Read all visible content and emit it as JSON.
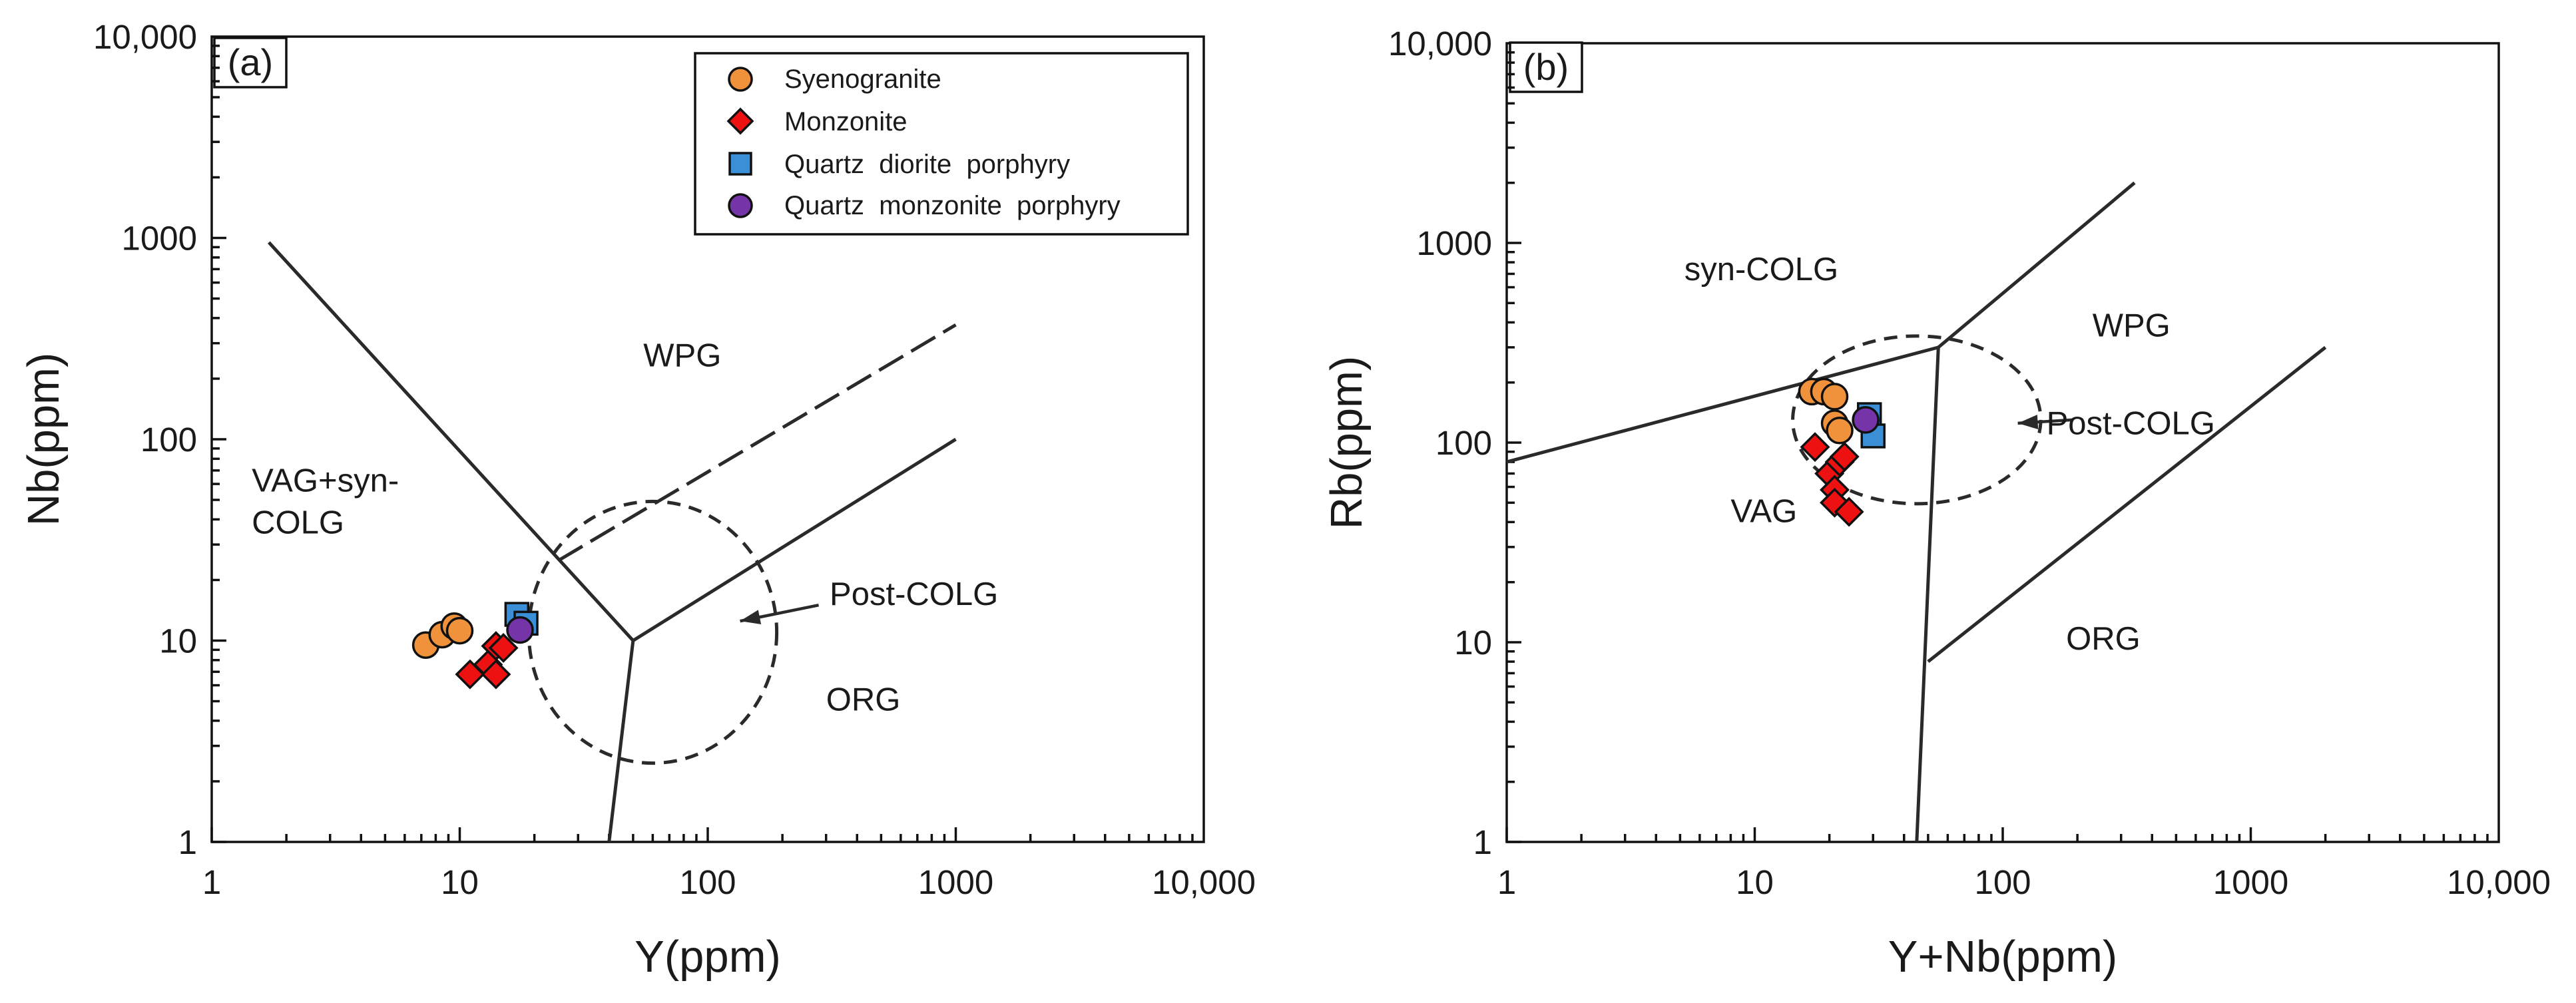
{
  "chart_data": [
    {
      "type": "scatter",
      "panel_label": "(a)",
      "xlabel": "Y(ppm)",
      "ylabel": "Nb(ppm)",
      "xscale": "log",
      "yscale": "log",
      "xlim": [
        1,
        10000
      ],
      "ylim": [
        1,
        10000
      ],
      "xticks": [
        1,
        10,
        100,
        1000,
        10000
      ],
      "yticks": [
        1,
        10,
        100,
        1000,
        10000
      ],
      "xtick_labels": [
        "1",
        "10",
        "100",
        "1000",
        "10,000"
      ],
      "ytick_labels": [
        "1",
        "10",
        "100",
        "1000",
        "10,000"
      ],
      "legend_position": "top-right",
      "legend": [
        {
          "name": "Syenogranite",
          "marker": "circle",
          "color": "#f0923c"
        },
        {
          "name": "Monzonite",
          "marker": "diamond",
          "color": "#ee1111"
        },
        {
          "name": "Quartz  diorite  porphyry",
          "marker": "square",
          "color": "#3b8fd6"
        },
        {
          "name": "Quartz  monzonite  porphyry",
          "marker": "circle",
          "color": "#7535a8"
        }
      ],
      "regions": [
        {
          "label": "WPG",
          "x": 55,
          "y": 230
        },
        {
          "label": "VAG+syn-",
          "x": 1.45,
          "y": 55
        },
        {
          "label": "COLG",
          "x": 1.45,
          "y": 34
        },
        {
          "label": "ORG",
          "x": 300,
          "y": 4.5
        },
        {
          "label": "Post-COLG",
          "x": 310,
          "y": 15
        }
      ],
      "boundaries": [
        {
          "style": "solid",
          "points": [
            [
              1.7,
              950
            ],
            [
              50,
              10
            ],
            [
              40,
              1
            ]
          ]
        },
        {
          "style": "solid",
          "points": [
            [
              50,
              10
            ],
            [
              1000,
              100
            ]
          ]
        },
        {
          "style": "dashed",
          "points": [
            [
              25,
              25
            ],
            [
              1000,
              370
            ]
          ]
        }
      ],
      "postcolg_circle": {
        "center": [
          60,
          11
        ],
        "radius_x_log": 0.5,
        "radius_y_log": 0.65
      },
      "postcolg_arrow": {
        "from": [
          280,
          15
        ],
        "to": [
          135,
          12.5
        ]
      },
      "series": [
        {
          "name": "Syenogranite",
          "points": [
            [
              7.3,
              9.5
            ],
            [
              8.5,
              10.7
            ],
            [
              9.5,
              11.8
            ],
            [
              10,
              11.2
            ]
          ]
        },
        {
          "name": "Monzonite",
          "points": [
            [
              11,
              6.8
            ],
            [
              13,
              7.6
            ],
            [
              14,
              6.8
            ],
            [
              14,
              9.4
            ],
            [
              15,
              9.2
            ]
          ]
        },
        {
          "name": "Quartz  diorite  porphyry",
          "points": [
            [
              17,
              13.5
            ],
            [
              18.5,
              12.2
            ]
          ]
        },
        {
          "name": "Quartz  monzonite  porphyry",
          "points": [
            [
              17.5,
              11.3
            ]
          ]
        }
      ]
    },
    {
      "type": "scatter",
      "panel_label": "(b)",
      "xlabel": "Y+Nb(ppm)",
      "ylabel": "Rb(ppm)",
      "xscale": "log",
      "yscale": "log",
      "xlim": [
        1,
        10000
      ],
      "ylim": [
        1,
        10000
      ],
      "xticks": [
        1,
        10,
        100,
        1000,
        10000
      ],
      "yticks": [
        1,
        10,
        100,
        1000,
        10000
      ],
      "xtick_labels": [
        "1",
        "10",
        "100",
        "1000",
        "10,000"
      ],
      "ytick_labels": [
        "1",
        "10",
        "100",
        "1000",
        "10,000"
      ],
      "regions": [
        {
          "label": "syn-COLG",
          "x": 5.2,
          "y": 650
        },
        {
          "label": "WPG",
          "x": 230,
          "y": 340
        },
        {
          "label": "VAG",
          "x": 8,
          "y": 40
        },
        {
          "label": "ORG",
          "x": 180,
          "y": 9.2
        },
        {
          "label": "Post-COLG",
          "x": 150,
          "y": 110
        }
      ],
      "boundaries": [
        {
          "style": "solid",
          "points": [
            [
              1,
              80
            ],
            [
              55,
              300
            ],
            [
              45,
              1
            ]
          ]
        },
        {
          "style": "solid",
          "points": [
            [
              55,
              300
            ],
            [
              340,
              2000
            ]
          ]
        },
        {
          "style": "solid",
          "points": [
            [
              50,
              8
            ],
            [
              2000,
              300
            ]
          ]
        }
      ],
      "postcolg_circle": {
        "center": [
          45,
          130
        ],
        "radius_x_log": 0.5,
        "radius_y_log": 0.42
      },
      "postcolg_arrow": {
        "from": [
          190,
          130
        ],
        "to": [
          115,
          125
        ]
      },
      "series": [
        {
          "name": "Syenogranite",
          "points": [
            [
              17,
              180
            ],
            [
              19,
              180
            ],
            [
              21,
              170
            ],
            [
              21,
              125
            ],
            [
              22,
              115
            ]
          ]
        },
        {
          "name": "Monzonite",
          "points": [
            [
              17.5,
              95
            ],
            [
              20,
              70
            ],
            [
              22,
              80
            ],
            [
              23,
              85
            ],
            [
              21,
              58
            ],
            [
              21,
              50
            ],
            [
              24,
              45
            ]
          ]
        },
        {
          "name": "Quartz  diorite  porphyry",
          "points": [
            [
              29,
              138
            ],
            [
              30,
              108
            ]
          ]
        },
        {
          "name": "Quartz  monzonite  porphyry",
          "points": [
            [
              28,
              130
            ]
          ]
        }
      ]
    }
  ]
}
